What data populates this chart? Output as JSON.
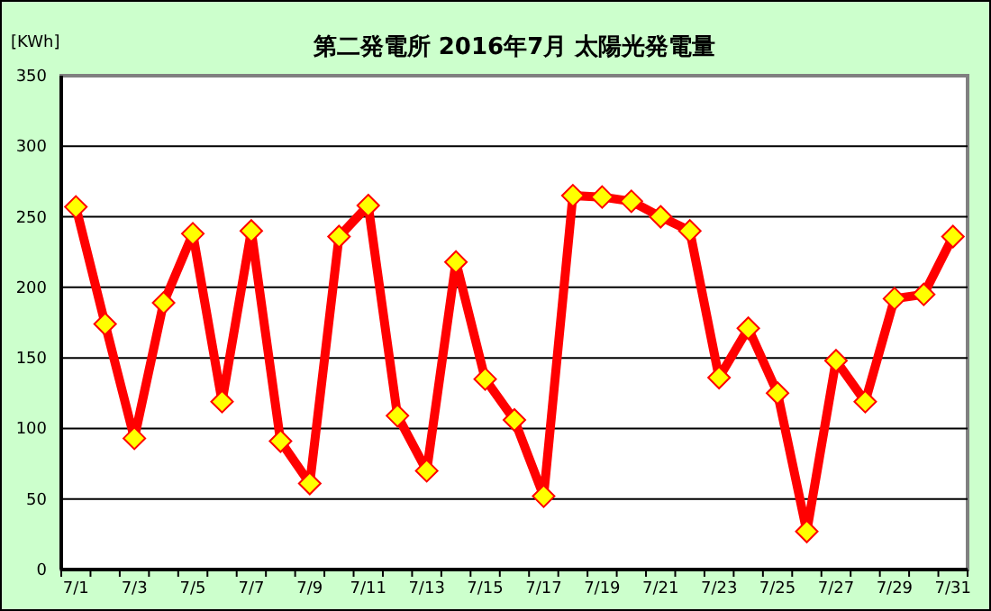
{
  "chart_data": {
    "type": "line",
    "title": "第二発電所  2016年7月 太陽光発電量",
    "ylabel": "[KWh]",
    "categories": [
      "7/1",
      null,
      "7/3",
      null,
      "7/5",
      null,
      "7/7",
      null,
      "7/9",
      null,
      "7/11",
      null,
      "7/13",
      null,
      "7/15",
      null,
      "7/17",
      null,
      "7/19",
      null,
      "7/21",
      null,
      "7/23",
      null,
      "7/25",
      null,
      "7/27",
      null,
      "7/29",
      null,
      "7/31"
    ],
    "series": [
      {
        "color": "#ff0000",
        "values": [
          257,
          174,
          93,
          189,
          238,
          119,
          240,
          91,
          61,
          236,
          258,
          109,
          70,
          218,
          135,
          106,
          52,
          265,
          264,
          261,
          250,
          240,
          136,
          171,
          125,
          27,
          148,
          119,
          192,
          195,
          236
        ]
      }
    ],
    "ylim": [
      0,
      350
    ],
    "yticks": [
      0,
      50,
      100,
      150,
      200,
      250,
      300,
      350
    ],
    "grid": "y",
    "marker": "diamond",
    "line_style": "solid"
  }
}
